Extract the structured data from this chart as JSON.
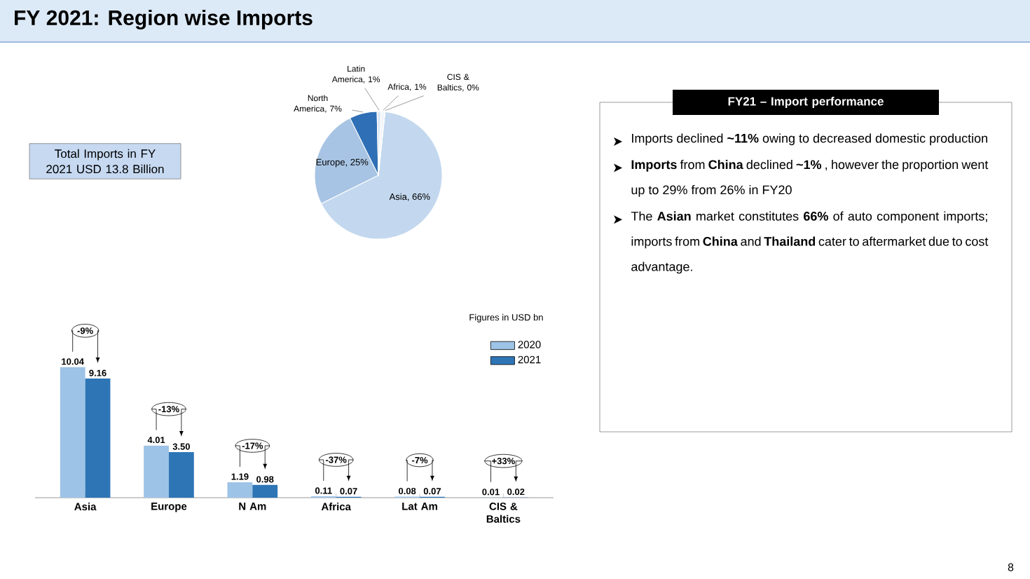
{
  "chart_data": [
    {
      "type": "pie",
      "title": "FY 2021: Region wise Imports",
      "categories": [
        "Asia, 66%",
        "Europe, 25%",
        "North America, 7%",
        "Latin America, 1%",
        "Africa, 1%",
        "CIS & Baltics, 0%"
      ],
      "values": [
        66,
        25,
        7,
        1,
        1,
        0
      ],
      "colors": [
        "#c3d8ee",
        "#a8c4e4",
        "#2f6fb5",
        "#dde9f5",
        "#f2f6fb",
        "#2f5f9f"
      ],
      "annotations": [
        "Total Imports in FY 2021 USD 13.8 Billion"
      ]
    },
    {
      "type": "bar",
      "categories": [
        "Asia",
        "Europe",
        "N Am",
        "Africa",
        "Lat Am",
        "CIS & Baltics"
      ],
      "series": [
        {
          "name": "2020",
          "color": "#9dc3e6",
          "values": [
            10.04,
            4.01,
            1.19,
            0.11,
            0.08,
            0.01
          ],
          "value_labels": [
            "10.04",
            "4.01",
            "1.19",
            "0.11",
            "0.08",
            "0.01"
          ]
        },
        {
          "name": "2021",
          "color": "#2e75b6",
          "values": [
            9.16,
            3.5,
            0.98,
            0.07,
            0.07,
            0.02
          ],
          "value_labels": [
            "9.16",
            "3.50",
            "0.98",
            "0.07",
            "0.07",
            "0.02"
          ]
        }
      ],
      "legend": "top right",
      "annotations": [
        "Figures in USD bn",
        "-9%",
        "-13%",
        "-17%",
        "-37%",
        "-7%",
        "+33%"
      ]
    },
    {
      "type": "other",
      "title": "FY21 – Import performance",
      "annotations": [
        "Imports declined **~11%** owing to decreased domestic production",
        "**Imports** from **China** declined **~1%** , however the proportion went up to 29% from 26% in FY20",
        "The **Asian** market constitutes **66%** of auto component imports; imports from **China** and **Thailand** cater to aftermarket due to cost advantage.",
        "8"
      ]
    }
  ]
}
